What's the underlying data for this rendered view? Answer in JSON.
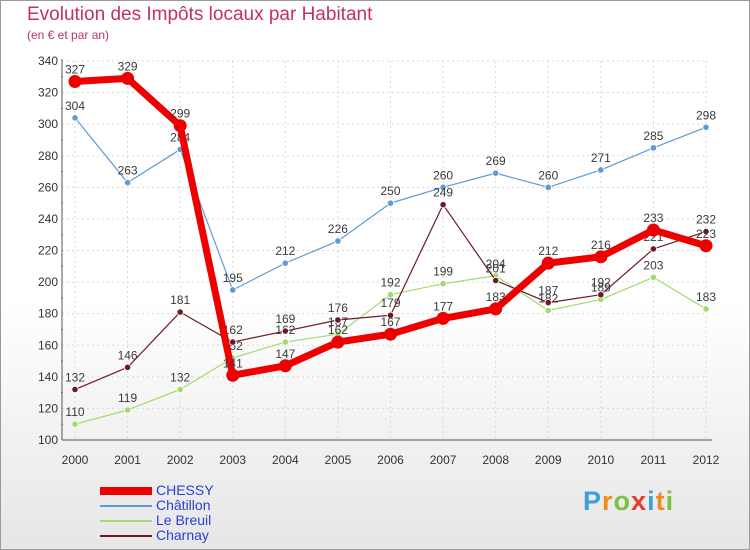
{
  "header": {
    "title": "Evolution des Impôts locaux par Habitant",
    "subtitle": "(en € et par an)"
  },
  "brand": {
    "letters": [
      "P",
      "r",
      "o",
      "x",
      "i",
      "t",
      "i"
    ],
    "colors": [
      "#3aa0dc",
      "#f28a1c",
      "#7bc043",
      "#e63a2e",
      "#3aa0dc",
      "#f28a1c",
      "#7bc043"
    ]
  },
  "chart_data": {
    "type": "line",
    "title": "Evolution des Impôts locaux par Habitant",
    "subtitle": "(en € et par an)",
    "xlabel": "",
    "ylabel": "",
    "categories": [
      "2000",
      "2001",
      "2002",
      "2003",
      "2004",
      "2005",
      "2006",
      "2007",
      "2008",
      "2009",
      "2010",
      "2011",
      "2012"
    ],
    "ylim": [
      100,
      340
    ],
    "yticks": [
      "100",
      "120",
      "140",
      "160",
      "180",
      "200",
      "220",
      "240",
      "260",
      "280",
      "300",
      "320",
      "340"
    ],
    "grid": true,
    "legend_position": "bottom-left",
    "series": [
      {
        "name": "Châtillon",
        "color": "#5c9bd5",
        "values": [
          304,
          263,
          284,
          195,
          212,
          226,
          250,
          260,
          269,
          260,
          271,
          285,
          298
        ],
        "labels": [
          "304",
          "263",
          "284",
          "195",
          "212",
          "226",
          "250",
          "260",
          "269",
          "260",
          "271",
          "285",
          "298"
        ]
      },
      {
        "name": "Le Breuil",
        "color": "#9fdc6f",
        "values": [
          110,
          119,
          132,
          152,
          162,
          167,
          192,
          199,
          204,
          182,
          189,
          203,
          183
        ],
        "labels": [
          "110",
          "119",
          "132",
          "152",
          "162",
          "167",
          "192",
          "199",
          "204",
          "182",
          "189",
          "203",
          "183"
        ]
      },
      {
        "name": "Charnay",
        "color": "#6b1a24",
        "values": [
          132,
          146,
          181,
          162,
          169,
          176,
          179,
          249,
          201,
          187,
          192,
          221,
          232
        ],
        "labels": [
          "132",
          "146",
          "181",
          "162",
          "169",
          "176",
          "179",
          "249",
          "201",
          "187",
          "192",
          "221",
          "232"
        ]
      },
      {
        "name": "CHESSY",
        "color": "#ee0000",
        "values": [
          327,
          329,
          299,
          141,
          147,
          162,
          167,
          177,
          183,
          212,
          216,
          233,
          223
        ],
        "labels": [
          "327",
          "329",
          "299",
          "141",
          "147",
          "162",
          "167",
          "177",
          "183",
          "212",
          "216",
          "233",
          "223"
        ]
      }
    ]
  }
}
